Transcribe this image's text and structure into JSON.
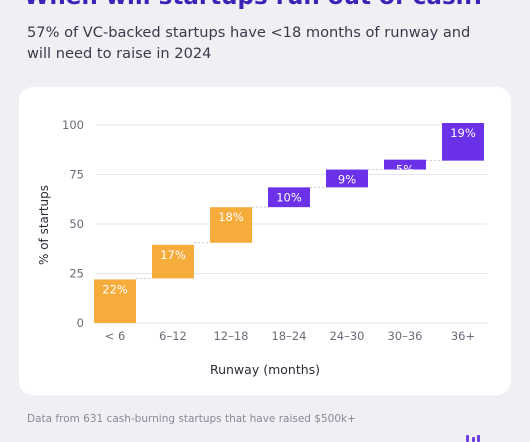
{
  "header": {
    "title": "When will startups run out of cash?",
    "subtitle": "57% of VC-backed startups have <18 months of runway and will need to raise in 2024"
  },
  "footnote": "Data from 631 cash-burning startups that have raised $500k+",
  "colors": {
    "background": "#f1eff4",
    "card": "#ffffff",
    "under_18_months": "#f5ac3b",
    "over_18_months": "#6a31e8",
    "title": "#3a24b8"
  },
  "chart_data": {
    "type": "bar",
    "subtype": "waterfall",
    "xlabel": "Runway (months)",
    "ylabel": "% of startups",
    "ylim": [
      0,
      100
    ],
    "yticks": [
      0,
      25,
      50,
      75,
      100
    ],
    "grid": true,
    "categories": [
      "< 6",
      "6–12",
      "12–18",
      "18–24",
      "24–30",
      "30–36",
      "36+"
    ],
    "values": [
      22,
      17,
      18,
      10,
      9,
      5,
      19
    ],
    "labels": [
      "22%",
      "17%",
      "18%",
      "10%",
      "9%",
      "5%",
      "19%"
    ],
    "cumulative_start": [
      0,
      22.5,
      40.5,
      58.5,
      68.5,
      77.5,
      82
    ],
    "groups": [
      "under_18_months",
      "under_18_months",
      "under_18_months",
      "over_18_months",
      "over_18_months",
      "over_18_months",
      "over_18_months"
    ]
  }
}
